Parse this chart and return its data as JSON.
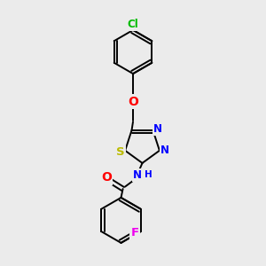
{
  "background_color": "#ebebeb",
  "bond_color": "#000000",
  "atom_colors": {
    "Cl": "#00bb00",
    "O": "#ff0000",
    "S": "#bbbb00",
    "N": "#0000ff",
    "F": "#ee00ee",
    "H": "#0000ff"
  },
  "font_size_atoms": 8.5,
  "line_width": 1.4,
  "figsize": [
    3.0,
    3.0
  ],
  "dpi": 100
}
